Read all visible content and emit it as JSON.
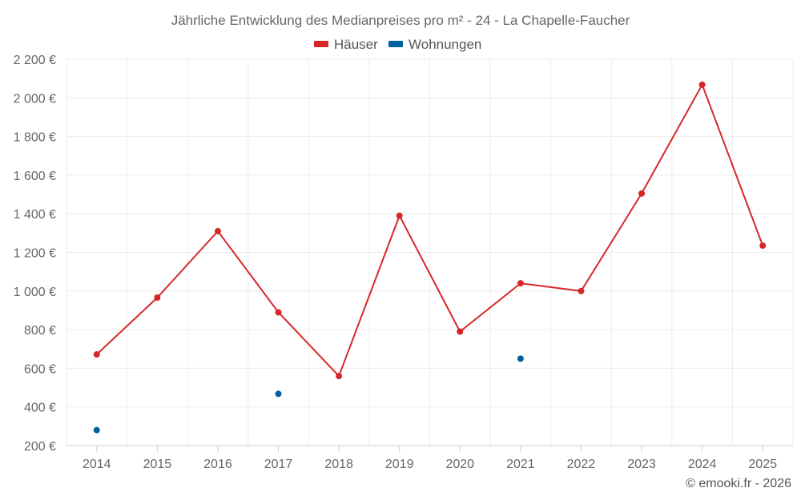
{
  "chart_data": {
    "type": "line",
    "title": "Jährliche Entwicklung des Medianpreises pro m² - 24 - La Chapelle-Faucher",
    "categories": [
      "2014",
      "2015",
      "2016",
      "2017",
      "2018",
      "2019",
      "2020",
      "2021",
      "2022",
      "2023",
      "2024",
      "2025"
    ],
    "series": [
      {
        "name": "Häuser",
        "color": "#d62728",
        "values": [
          672,
          966,
          1310,
          890,
          560,
          1390,
          790,
          1040,
          1000,
          1505,
          2068,
          1235
        ]
      },
      {
        "name": "Wohnungen",
        "color": "#0060a0",
        "values": [
          280,
          null,
          null,
          468,
          null,
          null,
          null,
          650,
          null,
          null,
          null,
          null
        ]
      }
    ],
    "ylim": [
      200,
      2200
    ],
    "yticks": [
      200,
      400,
      600,
      800,
      1000,
      1200,
      1400,
      1600,
      1800,
      2000,
      2200
    ],
    "ytick_labels": [
      "200 €",
      "400 €",
      "600 €",
      "800 €",
      "1 000 €",
      "1 200 €",
      "1 400 €",
      "1 600 €",
      "1 800 €",
      "2 000 €",
      "2 200 €"
    ],
    "xlabel": "",
    "ylabel": "",
    "grid": true,
    "legend_position": "top-center"
  },
  "credit": "© emooki.fr - 2026"
}
